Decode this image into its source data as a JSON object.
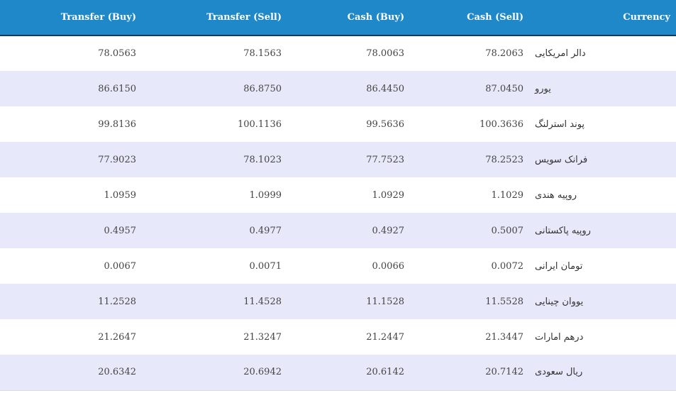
{
  "table": {
    "headers": {
      "transfer_buy": "Transfer (Buy)",
      "transfer_sell": "Transfer (Sell)",
      "cash_buy": "Cash (Buy)",
      "cash_sell": "Cash (Sell)",
      "currency": "Currency"
    },
    "rows": [
      {
        "transfer_buy": "78.0563",
        "transfer_sell": "78.1563",
        "cash_buy": "78.0063",
        "cash_sell": "78.2063",
        "currency": "دالر امریکایی"
      },
      {
        "transfer_buy": "86.6150",
        "transfer_sell": "86.8750",
        "cash_buy": "86.4450",
        "cash_sell": "87.0450",
        "currency": "یورو"
      },
      {
        "transfer_buy": "99.8136",
        "transfer_sell": "100.1136",
        "cash_buy": "99.5636",
        "cash_sell": "100.3636",
        "currency": "پوند استرلنگ"
      },
      {
        "transfer_buy": "77.9023",
        "transfer_sell": "78.1023",
        "cash_buy": "77.7523",
        "cash_sell": "78.2523",
        "currency": "فرانک سویس"
      },
      {
        "transfer_buy": "1.0959",
        "transfer_sell": "1.0999",
        "cash_buy": "1.0929",
        "cash_sell": "1.1029",
        "currency": "روپیه هندی"
      },
      {
        "transfer_buy": "0.4957",
        "transfer_sell": "0.4977",
        "cash_buy": "0.4927",
        "cash_sell": "0.5007",
        "currency": "روپیه پاکستانی"
      },
      {
        "transfer_buy": "0.0067",
        "transfer_sell": "0.0071",
        "cash_buy": "0.0066",
        "cash_sell": "0.0072",
        "currency": "تومان ایرانی"
      },
      {
        "transfer_buy": "11.2528",
        "transfer_sell": "11.4528",
        "cash_buy": "11.1528",
        "cash_sell": "11.5528",
        "currency": "یووان چینایی"
      },
      {
        "transfer_buy": "21.2647",
        "transfer_sell": "21.3247",
        "cash_buy": "21.2447",
        "cash_sell": "21.3447",
        "currency": "درهم امارات"
      },
      {
        "transfer_buy": "20.6342",
        "transfer_sell": "20.6942",
        "cash_buy": "20.6142",
        "cash_sell": "20.7142",
        "currency": "ریال سعودی"
      }
    ]
  },
  "colors": {
    "header_background": "#1e88c8",
    "header_text": "#ffffff",
    "row_alt_background": "#e7e9fa",
    "row_background": "#ffffff",
    "cell_text": "#444444"
  }
}
